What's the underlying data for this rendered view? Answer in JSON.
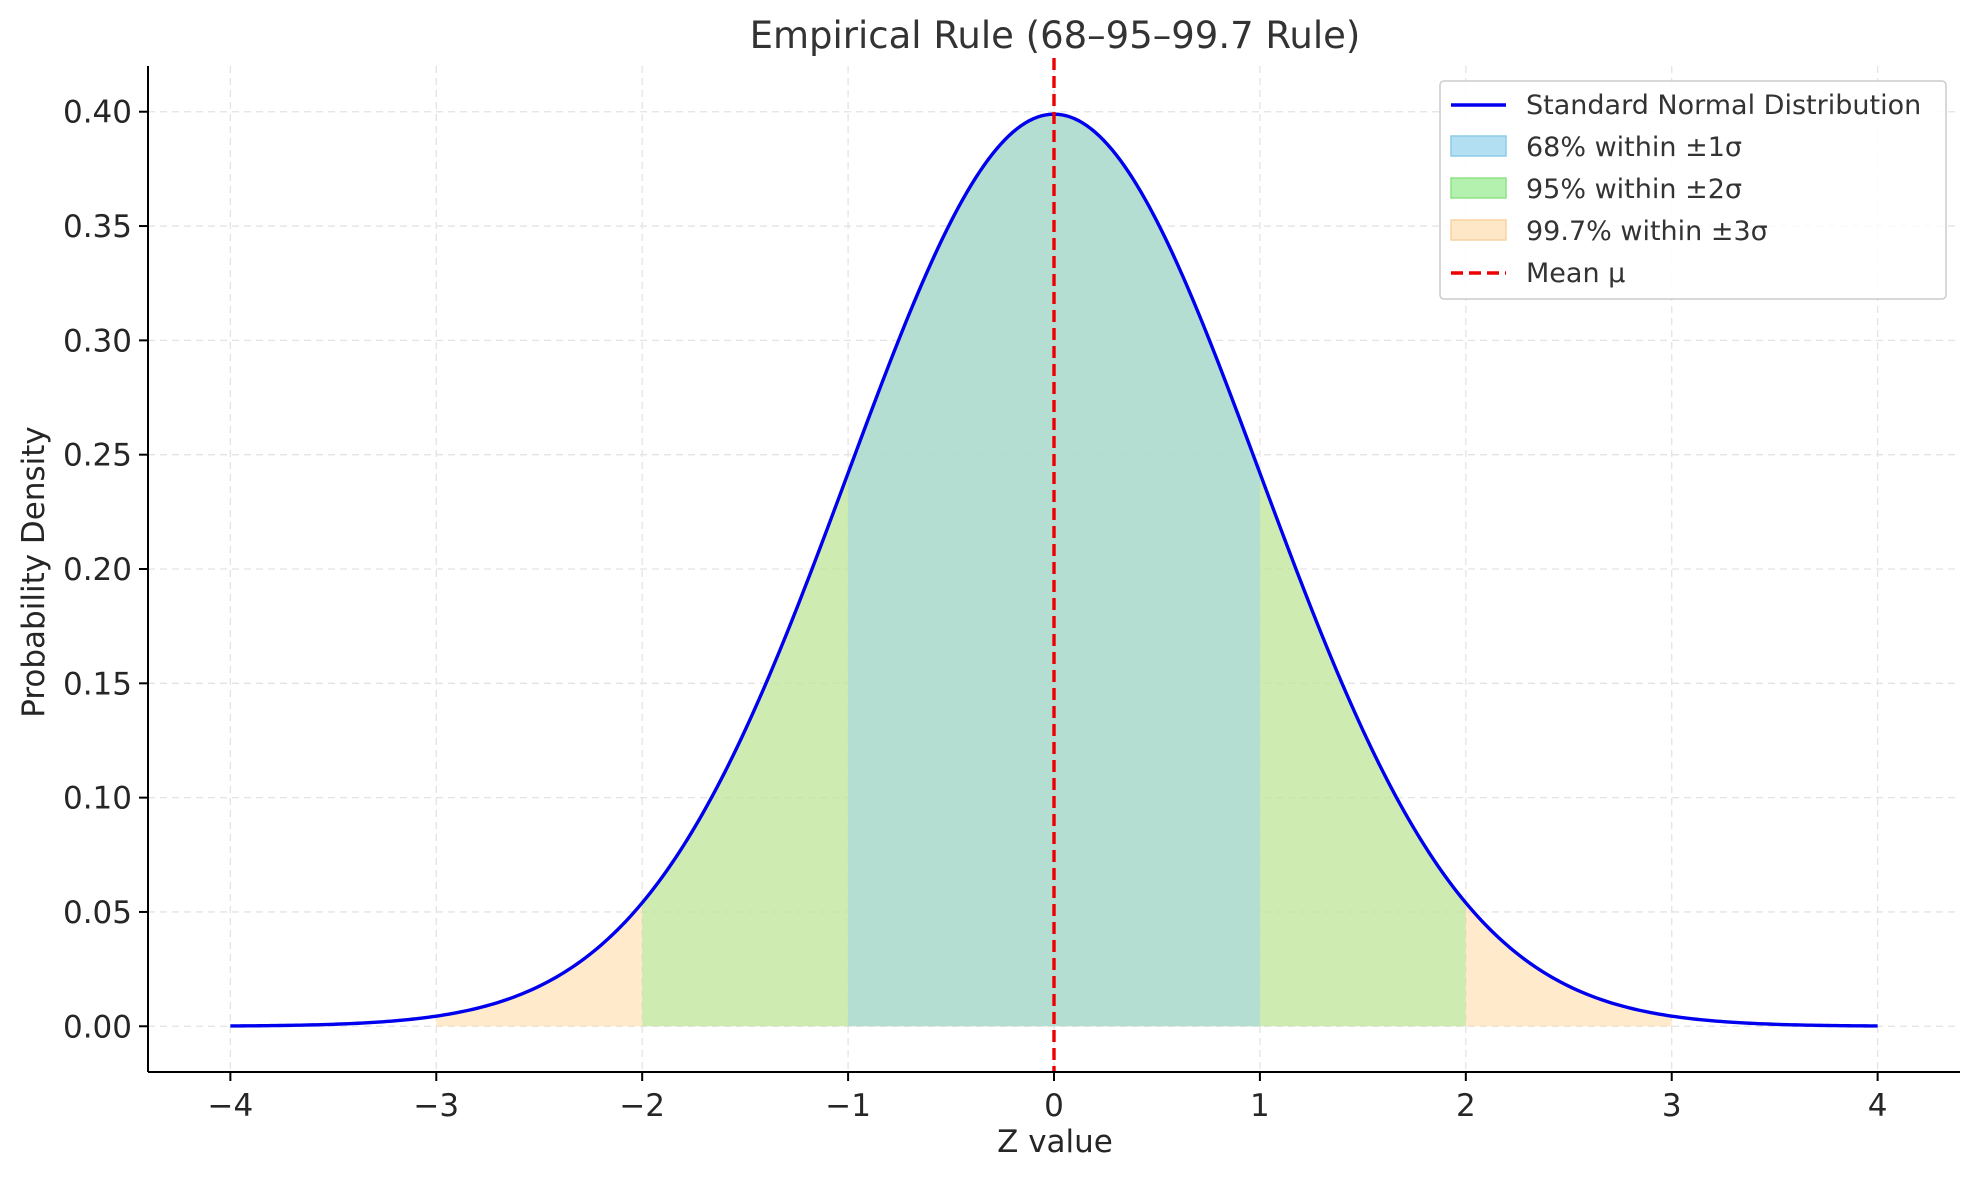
{
  "chart_data": {
    "type": "area",
    "title": "Empirical Rule (68–95–99.7 Rule)",
    "xlabel": "Z value",
    "ylabel": "Probability Density",
    "xlim": [
      -4.4,
      4.4
    ],
    "ylim": [
      -0.02,
      0.42
    ],
    "x_ticks": [
      -4,
      -3,
      -2,
      -1,
      0,
      1,
      2,
      3,
      4
    ],
    "x_tick_labels": [
      "−4",
      "−3",
      "−2",
      "−1",
      "0",
      "1",
      "2",
      "3",
      "4"
    ],
    "y_ticks": [
      0.0,
      0.05,
      0.1,
      0.15,
      0.2,
      0.25,
      0.3,
      0.35,
      0.4
    ],
    "y_tick_labels": [
      "0.00",
      "0.05",
      "0.10",
      "0.15",
      "0.20",
      "0.25",
      "0.30",
      "0.35",
      "0.40"
    ],
    "grid": true,
    "legend_position": "top-right",
    "curve": {
      "name": "Standard Normal Distribution",
      "mean": 0,
      "std": 1,
      "x_range": [
        -4,
        4
      ],
      "color": "#0000ee"
    },
    "bands": [
      {
        "name": "99.7% within ±3σ",
        "range": [
          -3,
          3
        ],
        "color": "#ffd9a0",
        "opacity": 0.55
      },
      {
        "name": "95% within ±2σ",
        "range": [
          -2,
          2
        ],
        "color": "#a6ec9c",
        "opacity": 0.55
      },
      {
        "name": "68% within ±1σ",
        "range": [
          -1,
          1
        ],
        "color": "#9fd3ec",
        "opacity": 0.55
      }
    ],
    "legend": [
      {
        "label": "Standard Normal Distribution",
        "kind": "line",
        "color": "#0000ee"
      },
      {
        "label": "68% within ±1σ",
        "kind": "patch",
        "color": "#b3dff2",
        "edge": "#8ccbe8"
      },
      {
        "label": "95% within ±2σ",
        "kind": "patch",
        "color": "#b4f0ae",
        "edge": "#8fe388"
      },
      {
        "label": "99.7% within ±3σ",
        "kind": "patch",
        "color": "#fde7c6",
        "edge": "#f7d3a0"
      },
      {
        "label": "Mean μ",
        "kind": "dashed-line",
        "color": "#ee0000"
      }
    ],
    "mean_line": {
      "name": "Mean μ",
      "x": 0,
      "color": "#ee0000"
    }
  }
}
